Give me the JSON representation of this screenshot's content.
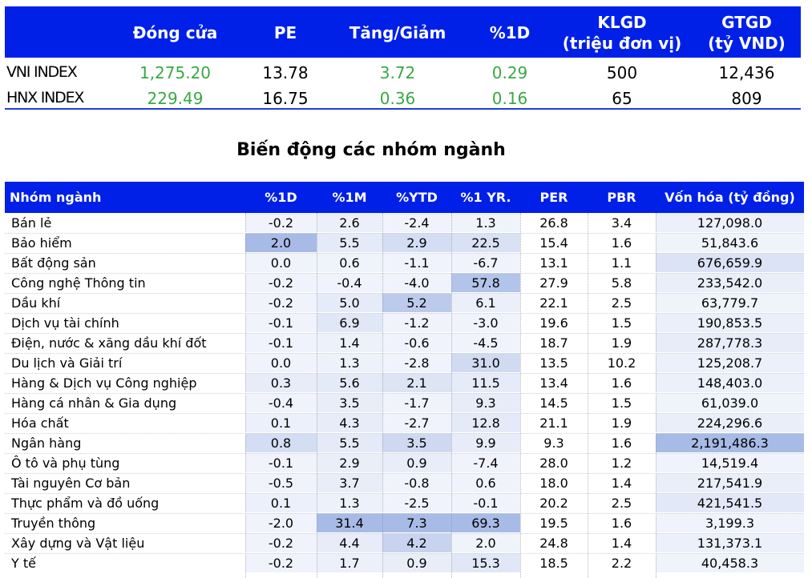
{
  "index_table": {
    "headers": [
      "Đóng cửa",
      "PE",
      "Tăng/Giảm",
      "%1D",
      [
        "KLGD",
        "(triệu đơn vị)"
      ],
      [
        "GTGD",
        "(tỷ VND)"
      ]
    ],
    "rows": [
      {
        "name": "VNI INDEX",
        "close": "1,275.20",
        "pe": "13.78",
        "change": "3.72",
        "pct1d": "0.29",
        "klgd": "500",
        "gtgd": "12,436"
      },
      {
        "name": "HNX INDEX",
        "close": "229.49",
        "pe": "16.75",
        "change": "0.36",
        "pct1d": "0.16",
        "klgd": "65",
        "gtgd": "809"
      }
    ],
    "positive_color": "#39a845",
    "header_color": "#0020e8"
  },
  "section_title": "Biến  động các nhóm ngành",
  "sector_table": {
    "headers": [
      "Nhóm ngành",
      "%1D",
      "%1M",
      "%YTD",
      "%1 YR.",
      "PER",
      "PBR",
      "Vốn hóa (tỷ đồng)"
    ],
    "rows": [
      {
        "name": "Bán lẻ",
        "d1": "-0.2",
        "m1": "2.6",
        "ytd": "-2.4",
        "yr1": "1.3",
        "per": "26.8",
        "pbr": "3.4",
        "cap": "127,098.0"
      },
      {
        "name": "Bảo hiểm",
        "d1": "2.0",
        "m1": "5.5",
        "ytd": "2.9",
        "yr1": "22.5",
        "per": "15.4",
        "pbr": "1.6",
        "cap": "51,843.6"
      },
      {
        "name": "Bất động sản",
        "d1": "0.0",
        "m1": "0.6",
        "ytd": "-1.1",
        "yr1": "-6.7",
        "per": "13.1",
        "pbr": "1.1",
        "cap": "676,659.9"
      },
      {
        "name": "Công nghệ Thông tin",
        "d1": "-0.2",
        "m1": "-0.4",
        "ytd": "-4.0",
        "yr1": "57.8",
        "per": "27.9",
        "pbr": "5.8",
        "cap": "233,542.0"
      },
      {
        "name": "Dầu khí",
        "d1": "-0.2",
        "m1": "5.0",
        "ytd": "5.2",
        "yr1": "6.1",
        "per": "22.1",
        "pbr": "2.5",
        "cap": "63,779.7"
      },
      {
        "name": "Dịch vụ tài chính",
        "d1": "-0.1",
        "m1": "6.9",
        "ytd": "-1.2",
        "yr1": "-3.0",
        "per": "19.6",
        "pbr": "1.5",
        "cap": "190,853.5"
      },
      {
        "name": "Điện, nước & xăng dầu khí đốt",
        "d1": "-0.1",
        "m1": "1.4",
        "ytd": "-0.6",
        "yr1": "-4.5",
        "per": "18.7",
        "pbr": "1.9",
        "cap": "287,778.3"
      },
      {
        "name": "Du lịch và Giải trí",
        "d1": "0.0",
        "m1": "1.3",
        "ytd": "-2.8",
        "yr1": "31.0",
        "per": "13.5",
        "pbr": "10.2",
        "cap": "125,208.7"
      },
      {
        "name": "Hàng & Dịch vụ Công nghiệp",
        "d1": "0.3",
        "m1": "5.6",
        "ytd": "2.1",
        "yr1": "11.5",
        "per": "13.4",
        "pbr": "1.6",
        "cap": "148,403.0"
      },
      {
        "name": "Hàng cá nhân & Gia dụng",
        "d1": "-0.4",
        "m1": "3.5",
        "ytd": "-1.7",
        "yr1": "9.3",
        "per": "14.5",
        "pbr": "1.5",
        "cap": "61,039.0"
      },
      {
        "name": "Hóa chất",
        "d1": "0.1",
        "m1": "4.3",
        "ytd": "-2.7",
        "yr1": "12.8",
        "per": "21.1",
        "pbr": "1.9",
        "cap": "224,296.6"
      },
      {
        "name": "Ngân hàng",
        "d1": "0.8",
        "m1": "5.5",
        "ytd": "3.5",
        "yr1": "9.9",
        "per": "9.3",
        "pbr": "1.6",
        "cap": "2,191,486.3"
      },
      {
        "name": "Ô tô và phụ tùng",
        "d1": "-0.1",
        "m1": "2.9",
        "ytd": "0.9",
        "yr1": "-7.4",
        "per": "28.0",
        "pbr": "1.2",
        "cap": "14,519.4"
      },
      {
        "name": "Tài nguyên Cơ bản",
        "d1": "-0.5",
        "m1": "3.7",
        "ytd": "-0.8",
        "yr1": "0.6",
        "per": "18.0",
        "pbr": "1.4",
        "cap": "217,541.9"
      },
      {
        "name": "Thực phẩm và đồ uống",
        "d1": "0.1",
        "m1": "1.3",
        "ytd": "-2.5",
        "yr1": "-0.1",
        "per": "20.2",
        "pbr": "2.5",
        "cap": "421,541.5"
      },
      {
        "name": "Truyền thông",
        "d1": "-2.0",
        "m1": "31.4",
        "ytd": "7.3",
        "yr1": "69.3",
        "per": "19.5",
        "pbr": "1.6",
        "cap": "3,199.3"
      },
      {
        "name": "Xây dựng và Vật liệu",
        "d1": "-0.2",
        "m1": "4.4",
        "ytd": "4.2",
        "yr1": "2.0",
        "per": "24.8",
        "pbr": "1.4",
        "cap": "131,373.1"
      },
      {
        "name": "Y tế",
        "d1": "-0.2",
        "m1": "1.7",
        "ytd": "0.9",
        "yr1": "15.3",
        "per": "18.5",
        "pbr": "2.2",
        "cap": "40,458.3"
      }
    ],
    "header_color": "#0020e8",
    "shade_base_color": "#6e8ed6"
  }
}
